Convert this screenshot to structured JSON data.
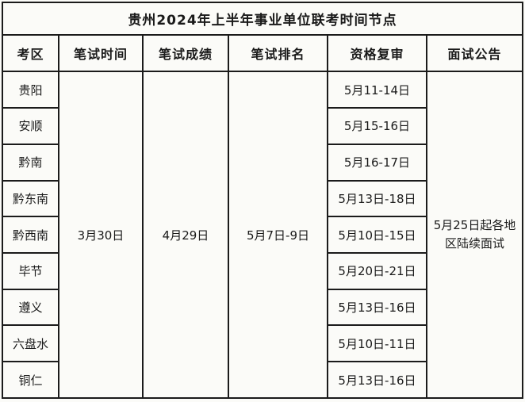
{
  "table": {
    "title": "贵州2024年上半年事业单位联考时间节点",
    "headers": {
      "region": "考区",
      "written_time": "笔试时间",
      "written_score": "笔试成绩",
      "written_rank": "笔试排名",
      "qualification_review": "资格复审",
      "interview_notice": "面试公告"
    },
    "merged": {
      "written_time": "3月30日",
      "written_score": "4月29日",
      "written_rank": "5月7日-9日",
      "interview_notice": "5月25日起各地区陆续面试"
    },
    "rows": [
      {
        "region": "贵阳",
        "review": "5月11-14日"
      },
      {
        "region": "安顺",
        "review": "5月15-16日"
      },
      {
        "region": "黔南",
        "review": "5月16-17日"
      },
      {
        "region": "黔东南",
        "review": "5月13日-18日"
      },
      {
        "region": "黔西南",
        "review": "5月10日-15日"
      },
      {
        "region": "毕节",
        "review": "5月20日-21日"
      },
      {
        "region": "遵义",
        "review": "5月13日-16日"
      },
      {
        "region": "六盘水",
        "review": "5月10日-11日"
      },
      {
        "region": "铜仁",
        "review": "5月13日-16日"
      }
    ],
    "colors": {
      "border": "#1b1b1b",
      "background": "#fbfbf8",
      "text": "#1a1a1a"
    }
  }
}
